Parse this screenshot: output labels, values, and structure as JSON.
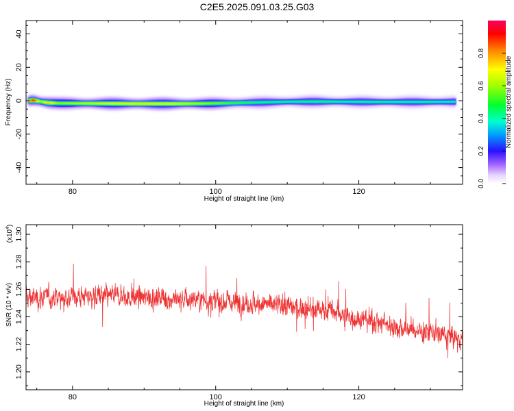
{
  "title": "C2E5.2025.091.03.25.G03",
  "chart_data": [
    {
      "type": "heatmap",
      "name": "spectrogram",
      "xlabel": "Height of straight line (km)",
      "ylabel": "Frequency (Hz)",
      "xlim": [
        73.5,
        134.5
      ],
      "ylim": [
        -50,
        48
      ],
      "x_ticks": [
        80,
        100,
        120
      ],
      "y_ticks": [
        40,
        20,
        0,
        -20,
        -40
      ],
      "colorbar": {
        "label": "Normalized spectral amplitude",
        "range": [
          0.0,
          1.0
        ],
        "ticks": [
          0.0,
          0.2,
          0.4,
          0.6,
          0.8
        ],
        "tick_labels": [
          "0.0",
          "0.2",
          "0.4",
          "0.6",
          "0.8"
        ]
      },
      "ridge": [
        {
          "x": 73.8,
          "freq": 0.0,
          "amp": 0.7
        },
        {
          "x": 74.5,
          "freq": 0.3,
          "amp": 0.95
        },
        {
          "x": 75.5,
          "freq": -0.5,
          "amp": 0.6
        },
        {
          "x": 76.5,
          "freq": -1.2,
          "amp": 0.75
        },
        {
          "x": 78,
          "freq": -1.5,
          "amp": 0.6
        },
        {
          "x": 82,
          "freq": -1.6,
          "amp": 0.65
        },
        {
          "x": 86,
          "freq": -1.7,
          "amp": 0.7
        },
        {
          "x": 90,
          "freq": -1.8,
          "amp": 0.72
        },
        {
          "x": 94,
          "freq": -1.8,
          "amp": 0.7
        },
        {
          "x": 98,
          "freq": -1.7,
          "amp": 0.62
        },
        {
          "x": 102,
          "freq": -1.4,
          "amp": 0.52
        },
        {
          "x": 106,
          "freq": -1.0,
          "amp": 0.45
        },
        {
          "x": 110,
          "freq": -0.6,
          "amp": 0.42
        },
        {
          "x": 114,
          "freq": -0.5,
          "amp": 0.45
        },
        {
          "x": 118,
          "freq": -0.6,
          "amp": 0.42
        },
        {
          "x": 122,
          "freq": -0.7,
          "amp": 0.43
        },
        {
          "x": 126,
          "freq": -0.7,
          "amp": 0.42
        },
        {
          "x": 130,
          "freq": -0.7,
          "amp": 0.42
        },
        {
          "x": 133.5,
          "freq": -0.6,
          "amp": 0.4
        }
      ]
    },
    {
      "type": "line",
      "name": "snr",
      "xlabel": "Height of straight line (km)",
      "ylabel": "SNR (10 * v/v)",
      "y_multiplier": "(x10^4)",
      "y_multiplier_base": "(x10",
      "y_multiplier_exp": "4",
      "y_multiplier_close": ")",
      "xlim": [
        73.5,
        134.5
      ],
      "ylim": [
        1.187,
        1.307
      ],
      "x_ticks": [
        80,
        100,
        120
      ],
      "y_ticks": [
        1.2,
        1.22,
        1.24,
        1.26,
        1.28,
        1.3
      ],
      "y_tick_labels": [
        "1.20",
        "1.22",
        "1.24",
        "1.26",
        "1.28",
        "1.30"
      ],
      "color": "#ee3333",
      "x_start": 73.5,
      "x_end": 134.5,
      "trend_points": [
        {
          "x": 73.5,
          "y": 1.254
        },
        {
          "x": 85,
          "y": 1.255
        },
        {
          "x": 95,
          "y": 1.253
        },
        {
          "x": 105,
          "y": 1.25
        },
        {
          "x": 115,
          "y": 1.245
        },
        {
          "x": 125,
          "y": 1.233
        },
        {
          "x": 134.5,
          "y": 1.224
        }
      ],
      "noise_amplitude": 0.011,
      "samples": 1900
    }
  ]
}
